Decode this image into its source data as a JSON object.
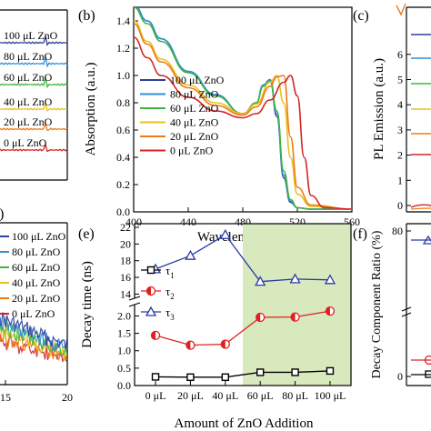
{
  "colors": {
    "ZnO_100": "#2e3f9c",
    "ZnO_80": "#2f8fd8",
    "ZnO_60": "#3fb53f",
    "ZnO_40": "#e8c21a",
    "ZnO_20": "#ef7a16",
    "ZnO_0": "#d42525",
    "shade": "#d7e9bd",
    "tau1": "#000000",
    "tau2": "#e02020",
    "tau3": "#2a3aa8"
  },
  "panel_a": {
    "legend": [
      "100 μL ZnO",
      "80 μL ZnO",
      "60 μL ZnO",
      "40 μL ZnO",
      "20 μL ZnO",
      "0 μL ZnO"
    ]
  },
  "panel_b": {
    "label": "(b)",
    "chart_data": {
      "type": "line",
      "title": "",
      "xlabel": "Wavelength (nm)",
      "ylabel": "Absorption (a.u.)",
      "xlim": [
        400,
        560
      ],
      "ylim": [
        0,
        1.5
      ],
      "x_ticks": [
        400,
        440,
        480,
        520,
        560
      ],
      "y_ticks": [
        0.0,
        0.2,
        0.4,
        0.6,
        0.8,
        1.0,
        1.2,
        1.4
      ],
      "legend_position": "center-left",
      "series": [
        {
          "name": "100 μL ZnO",
          "x": [
            400,
            410,
            420,
            440,
            460,
            480,
            490,
            495,
            500,
            505,
            510,
            515,
            520,
            530,
            560
          ],
          "values": [
            1.52,
            1.4,
            1.27,
            1.03,
            0.86,
            0.72,
            0.8,
            0.93,
            0.97,
            0.7,
            0.25,
            0.07,
            0.03,
            0.02,
            0.02
          ]
        },
        {
          "name": "80 μL ZnO",
          "x": [
            400,
            410,
            420,
            440,
            460,
            480,
            490,
            495,
            500,
            505,
            510,
            515,
            520,
            530,
            560
          ],
          "values": [
            1.52,
            1.4,
            1.27,
            1.03,
            0.86,
            0.72,
            0.8,
            0.93,
            0.97,
            0.72,
            0.27,
            0.08,
            0.03,
            0.02,
            0.02
          ]
        },
        {
          "name": "60 μL ZnO",
          "x": [
            400,
            410,
            420,
            440,
            460,
            480,
            490,
            495,
            500,
            505,
            510,
            515,
            520,
            530,
            560
          ],
          "values": [
            1.5,
            1.38,
            1.25,
            1.02,
            0.85,
            0.72,
            0.8,
            0.92,
            0.96,
            0.74,
            0.3,
            0.09,
            0.03,
            0.02,
            0.02
          ]
        },
        {
          "name": "40 μL ZnO",
          "x": [
            400,
            410,
            420,
            440,
            460,
            480,
            490,
            500,
            505,
            510,
            515,
            520,
            530,
            560
          ],
          "values": [
            1.4,
            1.25,
            1.12,
            0.93,
            0.8,
            0.72,
            0.79,
            0.95,
            1.0,
            0.8,
            0.4,
            0.13,
            0.04,
            0.02
          ]
        },
        {
          "name": "20 μL ZnO",
          "x": [
            400,
            410,
            420,
            440,
            460,
            480,
            490,
            500,
            505,
            510,
            515,
            520,
            530,
            560
          ],
          "values": [
            1.38,
            1.23,
            1.1,
            0.91,
            0.78,
            0.71,
            0.77,
            0.92,
            0.99,
            1.0,
            0.55,
            0.18,
            0.05,
            0.02
          ]
        },
        {
          "name": "0 μL ZnO",
          "x": [
            400,
            410,
            420,
            440,
            460,
            480,
            490,
            500,
            510,
            515,
            520,
            525,
            530,
            540,
            560
          ],
          "values": [
            1.28,
            1.13,
            1.0,
            0.84,
            0.74,
            0.69,
            0.72,
            0.82,
            0.95,
            1.0,
            0.85,
            0.4,
            0.12,
            0.03,
            0.02
          ]
        }
      ]
    }
  },
  "panel_c": {
    "label": "(c)",
    "ylabel": "PL Emission (a.u.)",
    "y_ticks": [
      "0",
      "1",
      "2",
      "3",
      "4",
      "5",
      "6"
    ]
  },
  "panel_d": {
    "label": "(d)",
    "legend": [
      "100 μL ZnO",
      "80 μL ZnO",
      "60 μL ZnO",
      "40 μL ZnO",
      "20 μL ZnO",
      "0 μL ZnO"
    ],
    "x_ticks": [
      "15",
      "20"
    ]
  },
  "panel_e": {
    "label": "(e)",
    "chart_data": {
      "type": "line",
      "title": "",
      "xlabel": "Amount of ZnO Addition",
      "ylabel": "Decay time (ns)",
      "categories": [
        "0 μL",
        "20 μL",
        "40 μL",
        "60 μL",
        "80 μL",
        "100 μL"
      ],
      "y_lower_lim": [
        0,
        2.3
      ],
      "y_upper_lim": [
        13.5,
        22
      ],
      "y_lower_ticks": [
        "0.0",
        "0.5",
        "1.0",
        "1.5",
        "2.0"
      ],
      "y_upper_ticks": [
        "14",
        "16",
        "18",
        "20",
        "22"
      ],
      "y_break": true,
      "shaded_categories": [
        "60 μL",
        "80 μL",
        "100 μL"
      ],
      "legend_position": "left",
      "series": [
        {
          "name": "τ1",
          "marker": "square",
          "values": [
            0.25,
            0.24,
            0.24,
            0.38,
            0.38,
            0.42
          ]
        },
        {
          "name": "τ2",
          "marker": "half-circle",
          "values": [
            1.44,
            1.16,
            1.19,
            1.96,
            1.97,
            2.14
          ]
        },
        {
          "name": "τ3",
          "marker": "triangle",
          "values": [
            17.0,
            18.6,
            21.1,
            15.5,
            15.8,
            15.7
          ]
        }
      ]
    }
  },
  "panel_f": {
    "label": "(f)",
    "ylabel": "Decay Component Ratio (%)",
    "y_ticks": [
      "0",
      "80"
    ]
  }
}
